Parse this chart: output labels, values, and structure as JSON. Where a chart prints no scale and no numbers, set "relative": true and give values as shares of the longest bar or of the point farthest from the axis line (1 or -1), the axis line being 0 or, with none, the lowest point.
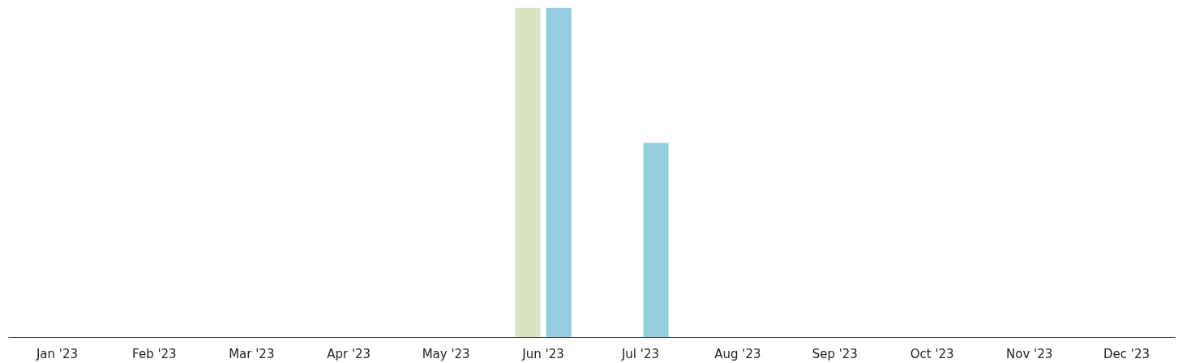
{
  "chart_data": {
    "type": "bar",
    "relative": true,
    "categories": [
      "Jan '23",
      "Feb '23",
      "Mar '23",
      "Apr '23",
      "May '23",
      "Jun '23",
      "Jul '23",
      "Aug '23",
      "Sep '23",
      "Oct '23",
      "Nov '23",
      "Dec '23"
    ],
    "series": [
      {
        "color": "#d9e5c0",
        "values": [
          0,
          0,
          0,
          0,
          0,
          1,
          0,
          0,
          0,
          0,
          0,
          0
        ]
      },
      {
        "color": "#93cddf",
        "values": [
          0,
          0,
          0,
          0,
          0,
          1,
          0.59,
          0,
          0,
          0,
          0,
          0
        ]
      }
    ],
    "grid": false
  }
}
